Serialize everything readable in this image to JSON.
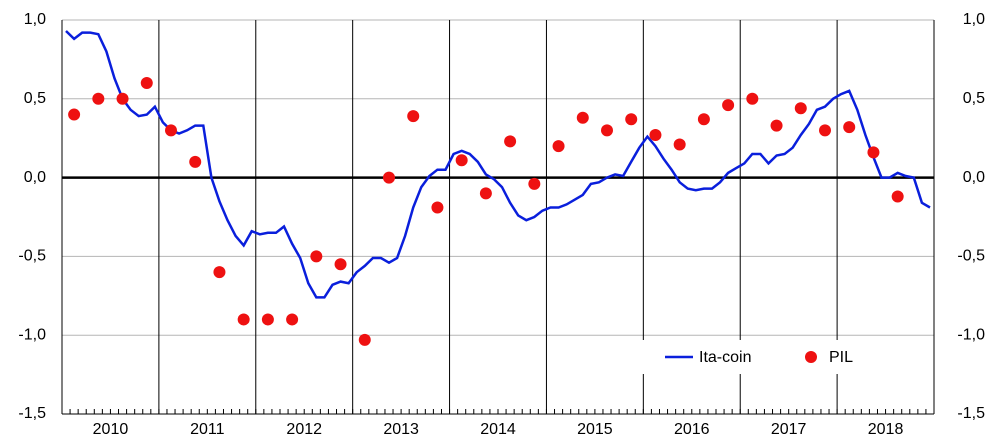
{
  "chart_data": {
    "type": "line",
    "categories": [
      null,
      null,
      null,
      null,
      null,
      null,
      "2010",
      null,
      null,
      null,
      null,
      null,
      null,
      null,
      null,
      null,
      null,
      null,
      "2011",
      null,
      null,
      null,
      null,
      null,
      null,
      null,
      null,
      null,
      null,
      null,
      "2012",
      null,
      null,
      null,
      null,
      null,
      null,
      null,
      null,
      null,
      null,
      null,
      "2013",
      null,
      null,
      null,
      null,
      null,
      null,
      null,
      null,
      null,
      null,
      null,
      "2014",
      null,
      null,
      null,
      null,
      null,
      null,
      null,
      null,
      null,
      null,
      null,
      "2015",
      null,
      null,
      null,
      null,
      null,
      null,
      null,
      null,
      null,
      null,
      null,
      "2016",
      null,
      null,
      null,
      null,
      null,
      null,
      null,
      null,
      null,
      null,
      null,
      "2017",
      null,
      null,
      null,
      null,
      null,
      null,
      null,
      null,
      null,
      null,
      null,
      "2018",
      null,
      null,
      null,
      null,
      null
    ],
    "series": [
      {
        "name": "Ita-coin",
        "type": "line",
        "color": "#0a1fdc",
        "values": [
          0.93,
          0.88,
          0.92,
          0.92,
          0.91,
          0.8,
          0.63,
          0.5,
          0.43,
          0.39,
          0.4,
          0.45,
          0.35,
          0.3,
          0.28,
          0.3,
          0.33,
          0.33,
          0.0,
          -0.15,
          -0.27,
          -0.37,
          -0.43,
          -0.34,
          -0.36,
          -0.35,
          -0.35,
          -0.31,
          -0.42,
          -0.51,
          -0.67,
          -0.76,
          -0.76,
          -0.68,
          -0.66,
          -0.67,
          -0.6,
          -0.56,
          -0.51,
          -0.51,
          -0.54,
          -0.51,
          -0.37,
          -0.19,
          -0.06,
          0.01,
          0.05,
          0.05,
          0.15,
          0.17,
          0.15,
          0.1,
          0.02,
          -0.01,
          -0.06,
          -0.16,
          -0.24,
          -0.27,
          -0.25,
          -0.21,
          -0.19,
          -0.19,
          -0.17,
          -0.14,
          -0.11,
          -0.04,
          -0.03,
          0.0,
          0.02,
          0.01,
          0.1,
          0.19,
          0.26,
          0.2,
          0.12,
          0.05,
          -0.03,
          -0.07,
          -0.08,
          -0.07,
          -0.07,
          -0.03,
          0.03,
          0.06,
          0.09,
          0.15,
          0.15,
          0.09,
          0.14,
          0.15,
          0.19,
          0.27,
          0.34,
          0.43,
          0.45,
          0.5,
          0.53,
          0.55,
          0.43,
          0.27,
          0.13,
          0.0,
          0.0,
          0.03,
          0.01,
          0.0,
          -0.16,
          -0.19
        ]
      },
      {
        "name": "PIL",
        "type": "scatter",
        "color": "#ee1111",
        "values": [
          null,
          0.4,
          null,
          null,
          0.5,
          null,
          null,
          0.5,
          null,
          null,
          0.6,
          null,
          null,
          0.3,
          null,
          null,
          0.1,
          null,
          null,
          -0.6,
          null,
          null,
          -0.9,
          null,
          null,
          -0.9,
          null,
          null,
          -0.9,
          null,
          null,
          -0.5,
          null,
          null,
          -0.55,
          null,
          null,
          -1.03,
          null,
          null,
          0.0,
          null,
          null,
          0.39,
          null,
          null,
          -0.19,
          null,
          null,
          0.11,
          null,
          null,
          -0.1,
          null,
          null,
          0.23,
          null,
          null,
          -0.04,
          null,
          null,
          0.2,
          null,
          null,
          0.38,
          null,
          null,
          0.3,
          null,
          null,
          0.37,
          null,
          null,
          0.27,
          null,
          null,
          0.21,
          null,
          null,
          0.37,
          null,
          null,
          0.46,
          null,
          null,
          0.5,
          null,
          null,
          0.33,
          null,
          null,
          0.44,
          null,
          null,
          0.3,
          null,
          null,
          0.32,
          null,
          null,
          0.16,
          null,
          null,
          -0.12,
          null,
          null,
          null,
          null
        ]
      }
    ],
    "ylim": [
      -1.5,
      1.0
    ],
    "yticks": [
      {
        "value": -1.5,
        "label": "-1,5"
      },
      {
        "value": -1.0,
        "label": "-1,0"
      },
      {
        "value": -0.5,
        "label": "-0,5"
      },
      {
        "value": 0.0,
        "label": "0,0"
      },
      {
        "value": 0.5,
        "label": "0,5"
      },
      {
        "value": 1.0,
        "label": "1,0"
      }
    ],
    "y2lim": [
      -1.5,
      1.0
    ],
    "y2ticks": [
      {
        "value": -1.5,
        "label": "-1,5"
      },
      {
        "value": -1.0,
        "label": "-1,0"
      },
      {
        "value": -0.5,
        "label": "-0,5"
      },
      {
        "value": 0.0,
        "label": "0,0"
      },
      {
        "value": 0.5,
        "label": "0,5"
      },
      {
        "value": 1.0,
        "label": "1,0"
      }
    ],
    "grid": true,
    "legend": "lower right"
  }
}
